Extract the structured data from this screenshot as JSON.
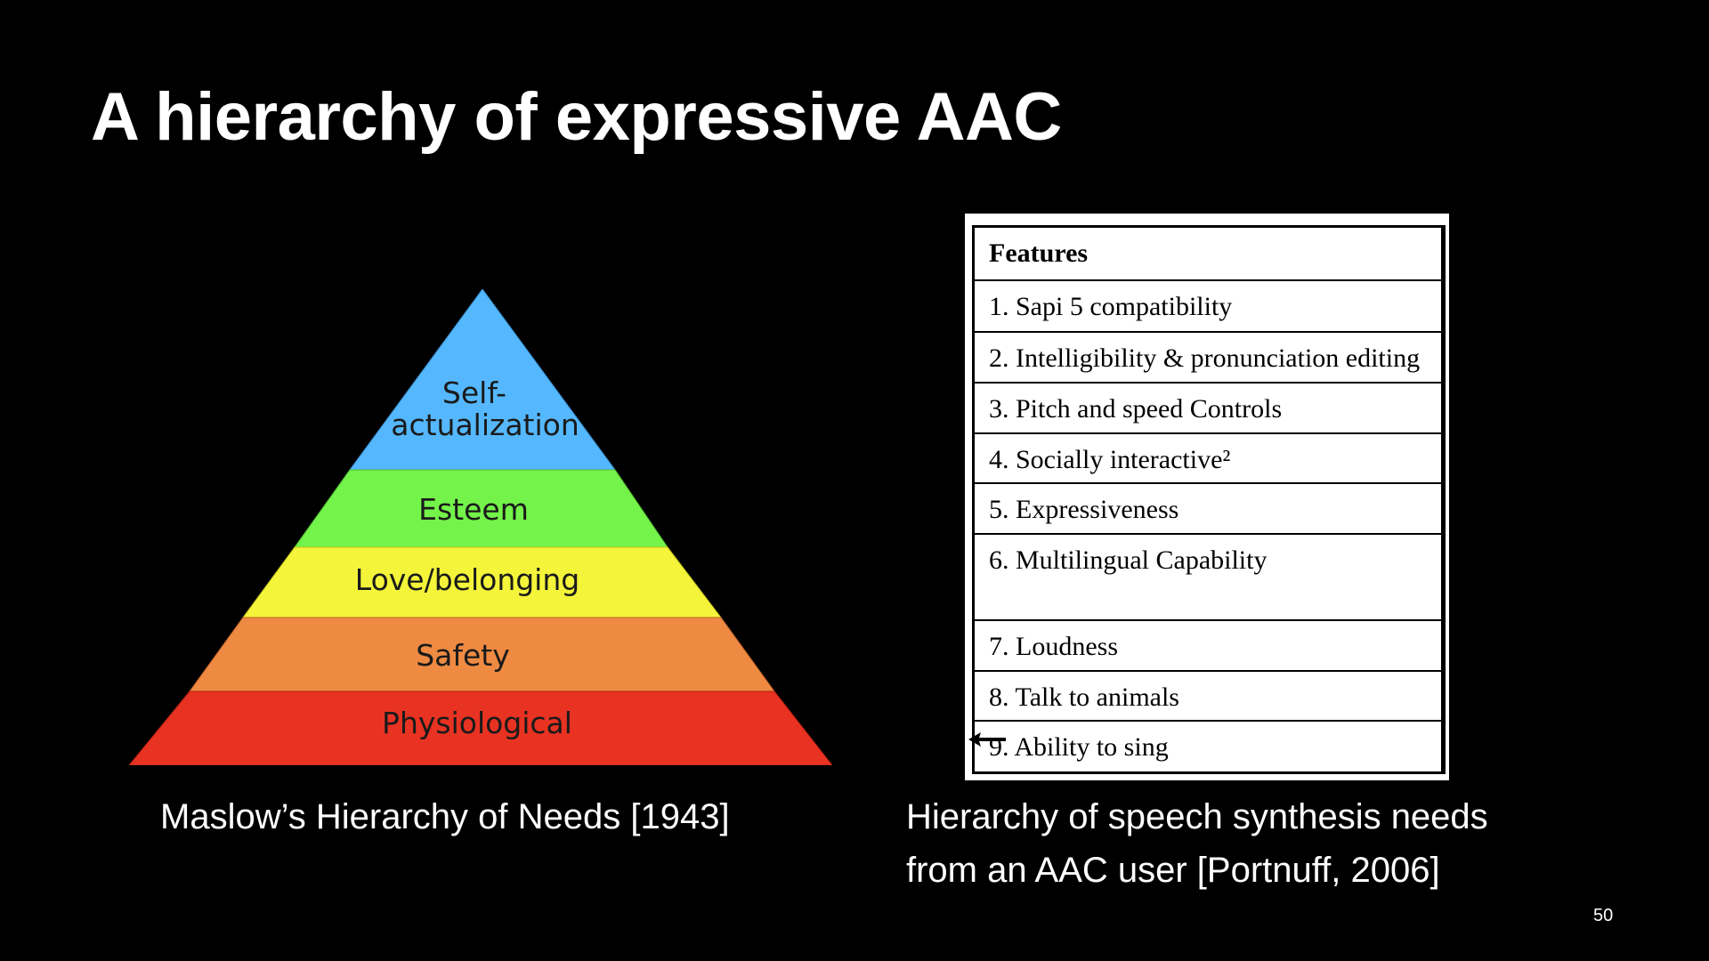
{
  "slide": {
    "title": "A hierarchy of expressive AAC",
    "page_number": "50"
  },
  "pyramid": {
    "levels": [
      {
        "label_line1": "Self-",
        "label_line2": "actualization",
        "color": "#55b8ff"
      },
      {
        "label": "Esteem",
        "color": "#74f34a"
      },
      {
        "label": "Love/belonging",
        "color": "#f4f43a"
      },
      {
        "label": "Safety",
        "color": "#ef8a42"
      },
      {
        "label": "Physiological",
        "color": "#e83222"
      }
    ],
    "caption": "Maslow’s Hierarchy of Needs [1943]"
  },
  "features_table": {
    "header": "Features",
    "rows": [
      "1. Sapi 5 compatibility",
      "2. Intelligibility & pronunciation editing",
      "3. Pitch and speed Controls",
      "4. Socially interactive²",
      "5. Expressiveness",
      "6. Multilingual Capability",
      "7. Loudness",
      "8. Talk to animals",
      "9. Ability to sing"
    ],
    "caption_line1": "Hierarchy of speech synthesis needs",
    "caption_line2": "from an AAC user [Portnuff, 2006]"
  }
}
